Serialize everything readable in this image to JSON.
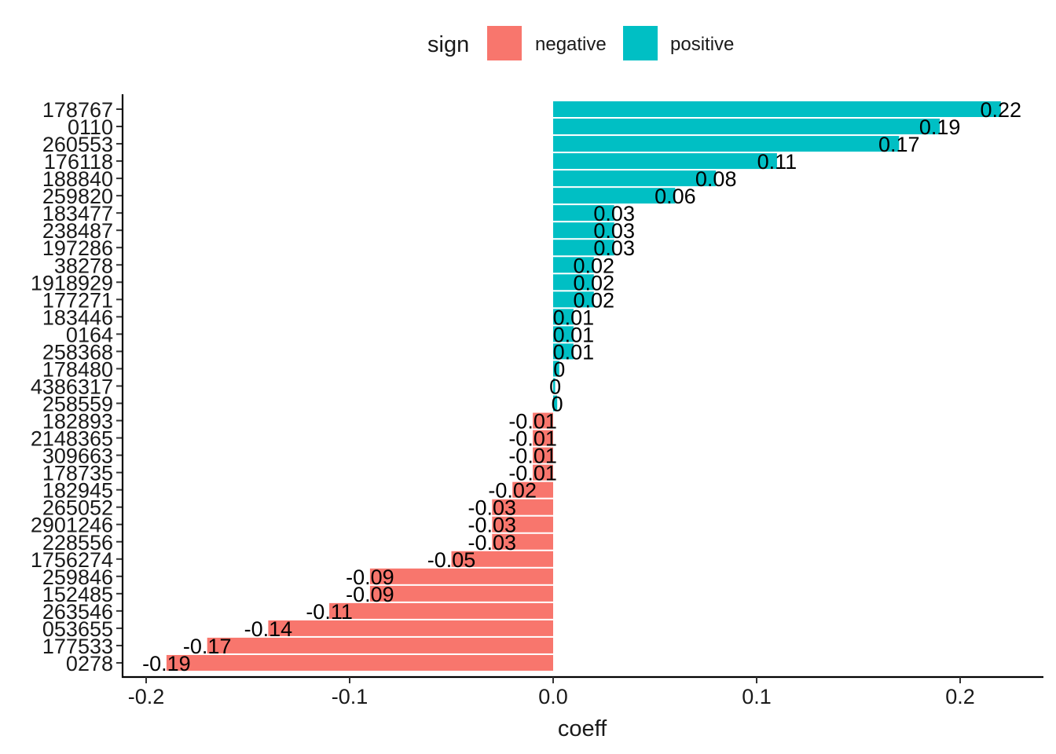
{
  "chart_data": {
    "type": "bar",
    "orientation": "horizontal",
    "xlabel": "coeff",
    "ylabel": "",
    "xlim": [
      -0.21,
      0.235
    ],
    "xticks": [
      -0.2,
      -0.1,
      0.0,
      0.1,
      0.2
    ],
    "xtick_labels": [
      "-0.2",
      "-0.1",
      "0.0",
      "0.1",
      "0.2"
    ],
    "grid": false,
    "legend": {
      "title": "sign",
      "position": "top",
      "entries": [
        {
          "label": "negative",
          "color": "#F8766D"
        },
        {
          "label": "positive",
          "color": "#00BFC4"
        }
      ]
    },
    "categories": [
      "178767",
      "0110",
      "260553",
      "176118",
      "188840",
      "259820",
      "183477",
      "238487",
      "197286",
      "38278",
      "1918929",
      "177271",
      "183446",
      "0164",
      "258368",
      "178480",
      "4386317",
      "258559",
      "182893",
      "2148365",
      "309663",
      "178735",
      "182945",
      "265052",
      "2901246",
      "228556",
      "1756274",
      "259846",
      "152485",
      "263546",
      "053655",
      "177533",
      "0278"
    ],
    "values": [
      0.22,
      0.19,
      0.17,
      0.11,
      0.08,
      0.06,
      0.03,
      0.03,
      0.03,
      0.02,
      0.02,
      0.02,
      0.01,
      0.01,
      0.01,
      0.003,
      0.001,
      0.002,
      -0.01,
      -0.01,
      -0.01,
      -0.01,
      -0.02,
      -0.03,
      -0.03,
      -0.03,
      -0.05,
      -0.09,
      -0.09,
      -0.11,
      -0.14,
      -0.17,
      -0.19
    ],
    "data_labels": [
      "0.22",
      "0.19",
      "0.17",
      "0.11",
      "0.08",
      "0.06",
      "0.03",
      "0.03",
      "0.03",
      "0.02",
      "0.02",
      "0.02",
      "0.01",
      "0.01",
      "0.01",
      "0",
      "0",
      "0",
      "-0.01",
      "-0.01",
      "-0.01",
      "-0.01",
      "-0.02",
      "-0.03",
      "-0.03",
      "-0.03",
      "-0.05",
      "-0.09",
      "-0.09",
      "-0.11",
      "-0.14",
      "-0.17",
      "-0.19"
    ]
  }
}
